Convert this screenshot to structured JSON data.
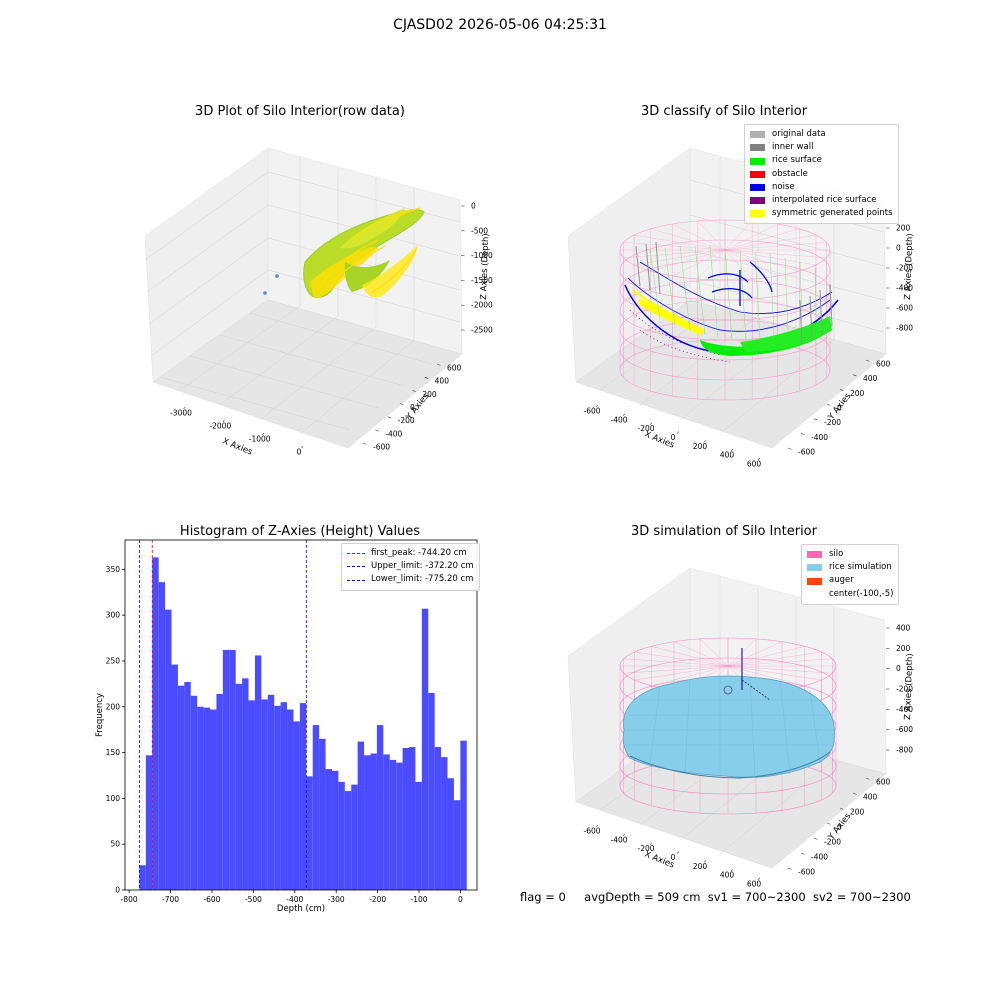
{
  "suptitle": "CJASD02 2026-05-06 04:25:31",
  "status": {
    "flag": "flag = 0",
    "avg_depth": "avgDepth = 509 cm",
    "sv1": "sv1 = 700~2300",
    "sv2": "sv2 = 700~2300"
  },
  "panels": {
    "raw": {
      "title": "3D Plot of Silo Interior(row data)",
      "xlabel": "X Axies",
      "ylabel": "Y Axies",
      "zlabel": "Z Axies (Depth)",
      "xticks": [
        "-3000",
        "-2000",
        "-1000",
        "0"
      ],
      "yticks": [
        "-600",
        "-400",
        "-200",
        "0",
        "200",
        "400",
        "600"
      ],
      "zticks": [
        "0",
        "-500",
        "-1000",
        "-1500",
        "-2000",
        "-2500"
      ],
      "colors": {
        "low": "#9acd32",
        "high": "#ffe000",
        "outlier": "#5a8fb0"
      }
    },
    "classify": {
      "title": "3D classify of Silo Interior",
      "xlabel": "X Axies",
      "ylabel": "Y Axies",
      "zlabel": "Z Axies (Depth)",
      "xticks": [
        "-600",
        "-400",
        "-200",
        "0",
        "200",
        "400",
        "600"
      ],
      "yticks": [
        "-600",
        "-400",
        "-200",
        "0",
        "200",
        "400",
        "600"
      ],
      "zticks": [
        "200",
        "0",
        "-200",
        "-400",
        "-600",
        "-800"
      ],
      "legend": [
        {
          "label": "original data",
          "color": "#b0b0b0"
        },
        {
          "label": "inner wall",
          "color": "#808080"
        },
        {
          "label": "rice surface",
          "color": "#00ee00"
        },
        {
          "label": "obstacle",
          "color": "#ff0000"
        },
        {
          "label": "noise",
          "color": "#0000dd"
        },
        {
          "label": "interpolated rice surface",
          "color": "#800080"
        },
        {
          "label": "symmetric generated points",
          "color": "#ffff00"
        }
      ],
      "wall_color": "#ff80c0",
      "z_top_tick": "0"
    },
    "histogram": {
      "title": "Histogram of Z-Axies (Height) Values",
      "xlabel": "Depth (cm)",
      "ylabel": "Frequency",
      "bar_color": "#4b4bff",
      "legend": [
        {
          "label": "first_peak: -744.20 cm",
          "color": "#ff0000"
        },
        {
          "label": "Upper_limit: -372.20 cm",
          "color": "#0000ff"
        },
        {
          "label": "Lower_limit: -775.20 cm",
          "color": "#0000ff"
        }
      ]
    },
    "simulation": {
      "title": "3D simulation of Silo Interior",
      "xlabel": "X Axies",
      "ylabel": "Y Axies",
      "zlabel": "Z Axies (Depth)",
      "xticks": [
        "-600",
        "-400",
        "-200",
        "0",
        "200",
        "400",
        "600"
      ],
      "yticks": [
        "-600",
        "-400",
        "-200",
        "0",
        "200",
        "400",
        "600"
      ],
      "zticks": [
        "400",
        "200",
        "0",
        "-200",
        "-400",
        "-600",
        "-800"
      ],
      "legend": [
        {
          "label": "silo",
          "color": "#ff69b4"
        },
        {
          "label": "rice simulation",
          "color": "#87ceeb"
        },
        {
          "label": "auger",
          "color": "#ff4500"
        },
        {
          "label": "center(-100,-5)",
          "color": ""
        }
      ],
      "silo_color": "#ff69b4",
      "rice_color": "#87ceeb"
    }
  },
  "chart_data": {
    "type": "bar",
    "title": "Histogram of Z-Axies (Height) Values",
    "xlabel": "Depth (cm)",
    "ylabel": "Frequency",
    "xlim": [
      -810,
      40
    ],
    "ylim": [
      0,
      382
    ],
    "xticks": [
      -800,
      -700,
      -600,
      -500,
      -400,
      -300,
      -200,
      -100,
      0
    ],
    "yticks": [
      0,
      50,
      100,
      150,
      200,
      250,
      300,
      350
    ],
    "bin_start": -775.2,
    "bin_width": 15.5,
    "values": [
      27,
      147,
      363,
      336,
      306,
      246,
      223,
      227,
      212,
      200,
      199,
      197,
      214,
      262,
      262,
      225,
      231,
      207,
      256,
      208,
      213,
      201,
      205,
      197,
      184,
      204,
      124,
      180,
      165,
      132,
      130,
      118,
      108,
      115,
      162,
      147,
      149,
      180,
      148,
      142,
      139,
      155,
      156,
      118,
      307,
      215,
      156,
      145,
      122,
      98,
      163
    ],
    "vlines": [
      {
        "x": -744.2,
        "color": "#ff0000"
      },
      {
        "x": -372.2,
        "color": "#0000ff"
      },
      {
        "x": -775.2,
        "color": "#0000ff"
      }
    ],
    "legend_position": "upper right",
    "grid": false
  }
}
